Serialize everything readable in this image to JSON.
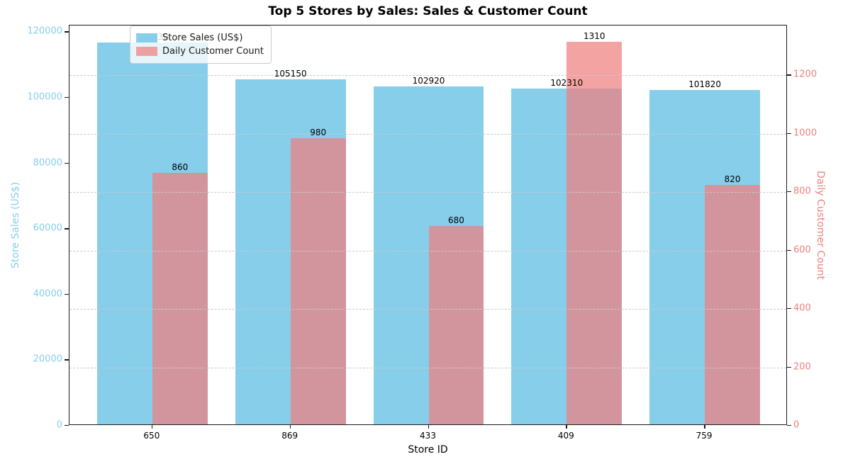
{
  "chart_data": {
    "type": "bar",
    "title": "Top 5 Stores by Sales: Sales & Customer Count",
    "xlabel": "Store ID",
    "categories": [
      "650",
      "869",
      "433",
      "409",
      "759"
    ],
    "series": [
      {
        "name": "Store Sales (US$)",
        "axis": "left",
        "color": "#87CEEB",
        "values": [
          116330,
          105150,
          102920,
          102310,
          101820
        ],
        "value_labels": [
          "116330",
          "105150",
          "102920",
          "102310",
          "101820"
        ]
      },
      {
        "name": "Daily Customer Count",
        "axis": "right",
        "color": "rgba(240,128,128,0.72)",
        "values": [
          860,
          980,
          680,
          1310,
          820
        ],
        "value_labels": [
          "860",
          "980",
          "680",
          "1310",
          "820"
        ]
      }
    ],
    "left_axis": {
      "label": "Store Sales (US$)",
      "color": "#87CEEB",
      "ticks": [
        0,
        20000,
        40000,
        60000,
        80000,
        100000,
        120000
      ],
      "range_max": 122000
    },
    "right_axis": {
      "label": "Daily Customer Count",
      "color": "#F08080",
      "ticks": [
        0,
        200,
        400,
        600,
        800,
        1000,
        1200
      ],
      "range_max": 1370
    },
    "grid": {
      "style": "dashed",
      "on": "right_axis_ticks",
      "color": "#c9c9c9"
    },
    "legend": {
      "position": "upper-left"
    }
  }
}
